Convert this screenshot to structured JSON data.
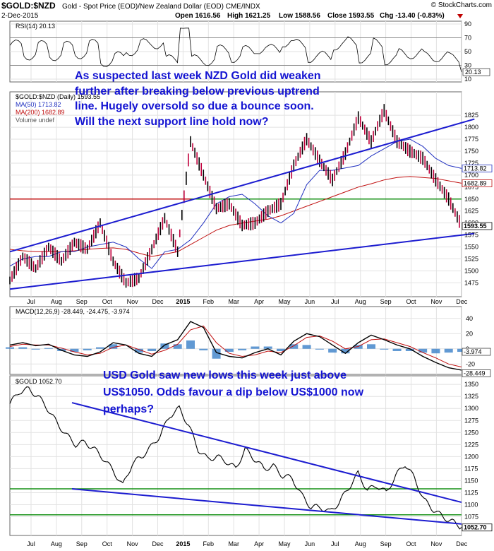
{
  "header": {
    "symbol": "$GOLD:$NZD",
    "description": "Gold - Spot Price (EOD)/New Zealand Dollar (EOD)",
    "exchange": "CME/INDX",
    "date": "2-Dec-2015",
    "ohlc": {
      "open": "Open 1616.56",
      "high": "High 1621.25",
      "low": "Low 1588.56",
      "close": "Close 1593.55",
      "chg": "Chg -13.40 (-0.83%)"
    },
    "source": "© StockCharts.com"
  },
  "colors": {
    "annotation": "#1414d2",
    "ma50": "#2030c0",
    "ma200": "#c01010",
    "green_line": "#169016",
    "red_line": "#c01010",
    "trend": "#1c1cd0",
    "price": "#000000",
    "up_candle": "#c0003c",
    "macd_hist": "#3a7fc8"
  },
  "chart_data": [
    {
      "type": "line",
      "panel": "RSI",
      "label": "RSI(14) 20.13",
      "ylim": [
        10,
        90
      ],
      "yticks": [
        10,
        30,
        50,
        70,
        90
      ],
      "reference_lines": [
        30,
        70
      ],
      "last_value": "20.13"
    },
    {
      "type": "line",
      "panel": "main",
      "title": "$GOLD:$NZD (Daily) 1593.55",
      "ylim": [
        1452,
        1868
      ],
      "yticks": [
        1475,
        1500,
        1525,
        1550,
        1575,
        1600,
        1625,
        1650,
        1675,
        1700,
        1725,
        1750,
        1775,
        1800,
        1825
      ],
      "x_labels": [
        "Jul",
        "Aug",
        "Sep",
        "Oct",
        "Nov",
        "Dec",
        "2015",
        "Feb",
        "Mar",
        "Apr",
        "May",
        "Jun",
        "Jul",
        "Aug",
        "Sep",
        "Oct",
        "Nov",
        "Dec"
      ],
      "legend": [
        "$GOLD:$NZD (Daily) 1593.55",
        "MA(50) 1713.82",
        "MA(200) 1682.89",
        "Volume undef"
      ],
      "value_tags": [
        "1713.82",
        "1682.89",
        "1593.55"
      ],
      "horizontal_lines": [
        {
          "value": 1650,
          "color": "red_then_green"
        }
      ],
      "series": [
        {
          "name": "$GOLD:$NZD",
          "values": [
            1480,
            1530,
            1505,
            1550,
            1520,
            1560,
            1545,
            1600,
            1520,
            1475,
            1485,
            1545,
            1610,
            1540,
            1770,
            1700,
            1630,
            1640,
            1595,
            1600,
            1625,
            1640,
            1720,
            1775,
            1730,
            1690,
            1745,
            1820,
            1770,
            1835,
            1770,
            1750,
            1735,
            1690,
            1650,
            1594
          ]
        },
        {
          "name": "MA(50) 1713.82",
          "values": [
            1510,
            1525,
            1530,
            1530,
            1540,
            1540,
            1550,
            1555,
            1560,
            1550,
            1525,
            1505,
            1540,
            1545,
            1565,
            1600,
            1640,
            1655,
            1660,
            1640,
            1615,
            1600,
            1620,
            1680,
            1710,
            1710,
            1715,
            1720,
            1740,
            1755,
            1770,
            1775,
            1760,
            1735,
            1720,
            1714
          ]
        },
        {
          "name": "MA(200) 1682.89",
          "values": [
            1545,
            1542,
            1540,
            1540,
            1540,
            1542,
            1545,
            1547,
            1548,
            1545,
            1537,
            1530,
            1535,
            1540,
            1555,
            1570,
            1585,
            1595,
            1600,
            1604,
            1608,
            1615,
            1625,
            1635,
            1645,
            1655,
            1665,
            1675,
            1682,
            1690,
            1695,
            1697,
            1695,
            1693,
            1688,
            1683
          ]
        }
      ],
      "trendlines": [
        {
          "from": [
            0,
            1540
          ],
          "to": [
            36,
            1817
          ]
        },
        {
          "from": [
            0,
            1462
          ],
          "to": [
            36,
            1578
          ]
        }
      ],
      "annotation": [
        "As suspected last week NZD Gold did weaken",
        "further after breaking below previous uptrend",
        "line. Hugely oversold so due a bounce soon.",
        "Will the next support line hold now?"
      ]
    },
    {
      "type": "line",
      "panel": "MACD",
      "label": "MACD(12,26,9) -28.449, -24.475, -3.974",
      "ylim": [
        -30,
        50
      ],
      "yticks": [
        -20,
        0,
        20,
        40
      ],
      "value_tags": [
        "-3.974",
        "-28.449"
      ],
      "series": [
        {
          "name": "MACD",
          "values": [
            5,
            8,
            4,
            6,
            -2,
            -8,
            -10,
            -4,
            8,
            5,
            -6,
            -10,
            5,
            12,
            36,
            28,
            -5,
            -10,
            -12,
            -5,
            0,
            -8,
            10,
            20,
            16,
            5,
            -6,
            8,
            18,
            12,
            5,
            0,
            -10,
            -18,
            -25,
            -28
          ]
        },
        {
          "name": "Signal",
          "values": [
            3,
            6,
            5,
            5,
            1,
            -4,
            -8,
            -6,
            2,
            5,
            -1,
            -7,
            -2,
            6,
            25,
            30,
            8,
            -6,
            -10,
            -8,
            -3,
            -5,
            4,
            15,
            17,
            10,
            0,
            3,
            12,
            13,
            8,
            3,
            -5,
            -12,
            -20,
            -24
          ]
        }
      ]
    },
    {
      "type": "line",
      "panel": "GOLD",
      "title": "$GOLD 1052.70",
      "ylim": [
        1042,
        1362
      ],
      "yticks": [
        1075,
        1100,
        1125,
        1150,
        1175,
        1200,
        1225,
        1250,
        1275,
        1300,
        1325,
        1350
      ],
      "value_tags": [
        "1052.70"
      ],
      "horizontal_lines": [
        {
          "value": 1133
        },
        {
          "value": 1079
        }
      ],
      "series": [
        {
          "name": "$GOLD",
          "values": [
            1310,
            1335,
            1340,
            1325,
            1300,
            1270,
            1245,
            1225,
            1230,
            1215,
            1195,
            1170,
            1140,
            1185,
            1200,
            1220,
            1245,
            1285,
            1300,
            1265,
            1215,
            1195,
            1200,
            1190,
            1175,
            1215,
            1195,
            1175,
            1180,
            1160,
            1155,
            1120,
            1095,
            1095,
            1085,
            1105,
            1135,
            1165,
            1130,
            1140,
            1125,
            1160,
            1185,
            1155,
            1110,
            1090,
            1075,
            1065,
            1053
          ]
        }
      ],
      "trendlines": [
        {
          "from": [
            6.6,
            1312
          ],
          "to": [
            48,
            1105
          ]
        },
        {
          "from": [
            6.6,
            1133
          ],
          "to": [
            48,
            1060
          ]
        }
      ],
      "annotation": [
        "USD Gold saw new lows this week just above",
        "US$1050. Odds favour a dip below US$1000 now",
        "perhaps?"
      ]
    }
  ]
}
